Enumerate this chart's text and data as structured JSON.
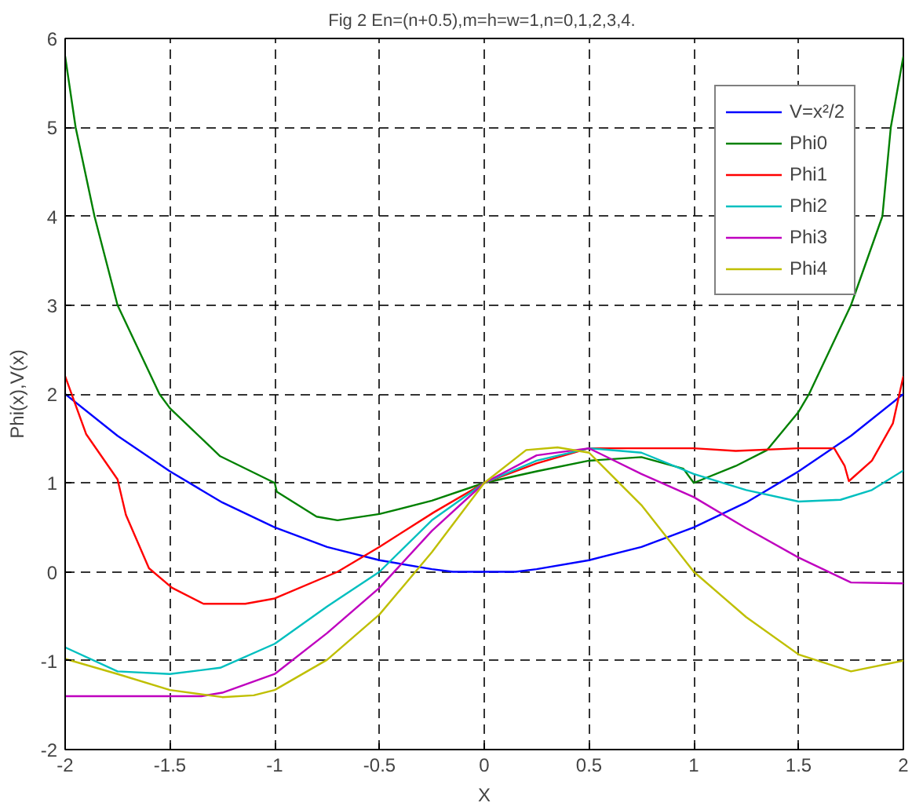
{
  "chart_data": {
    "type": "line",
    "title": "Fig 2  En=(n+0.5),m=h=w=1,n=0,1,2,3,4.",
    "xlabel": "X",
    "ylabel": "Phi(x),V(x)",
    "xlim": [
      -2,
      2
    ],
    "ylim": [
      -2,
      6
    ],
    "xticks": [
      -2,
      -1.5,
      -1,
      -0.5,
      0,
      0.5,
      1,
      1.5,
      2
    ],
    "yticks": [
      -2,
      -1,
      0,
      1,
      2,
      3,
      4,
      5,
      6
    ],
    "grid": true,
    "legend": "top right",
    "line_style": "solid",
    "series": [
      {
        "name": "V=x²/2",
        "color": "#0000ff",
        "x": [
          -2,
          -1.75,
          -1.5,
          -1.25,
          -1,
          -0.75,
          -0.5,
          -0.25,
          -0.15,
          0,
          0.15,
          0.25,
          0.5,
          0.75,
          1,
          1.25,
          1.5,
          1.75,
          2
        ],
        "values": [
          2,
          1.53,
          1.13,
          0.78,
          0.5,
          0.28,
          0.13,
          0.03,
          0,
          0,
          0,
          0.03,
          0.13,
          0.28,
          0.5,
          0.78,
          1.13,
          1.53,
          2
        ]
      },
      {
        "name": "Phi0",
        "color": "#008000",
        "x": [
          -2,
          -1.95,
          -1.86,
          -1.75,
          -1.55,
          -1.5,
          -1.26,
          -1.0,
          -0.99,
          -0.8,
          -0.7,
          -0.5,
          -0.25,
          0,
          0.25,
          0.5,
          0.75,
          0.95,
          1.0,
          1.2,
          1.35,
          1.5,
          1.55,
          1.75,
          1.9,
          1.94,
          2
        ],
        "values": [
          5.8,
          5,
          4,
          3,
          2,
          1.84,
          1.3,
          1.0,
          0.9,
          0.62,
          0.58,
          0.65,
          0.8,
          1.0,
          1.13,
          1.25,
          1.29,
          1.16,
          1.0,
          1.19,
          1.37,
          1.8,
          2.0,
          3,
          4,
          5,
          5.8
        ]
      },
      {
        "name": "Phi1",
        "color": "#ff0000",
        "x": [
          -2,
          -1.9,
          -1.75,
          -1.71,
          -1.6,
          -1.49,
          -1.34,
          -1.14,
          -1,
          -0.7,
          -0.5,
          -0.24,
          0,
          0.25,
          0.5,
          1.0,
          1.2,
          1.5,
          1.67,
          1.72,
          1.74,
          1.85,
          1.95,
          2
        ],
        "values": [
          2.2,
          1.55,
          1.04,
          0.64,
          0.04,
          -0.18,
          -0.36,
          -0.36,
          -0.3,
          0,
          0.28,
          0.67,
          1.0,
          1.22,
          1.39,
          1.39,
          1.36,
          1.39,
          1.39,
          1.19,
          1.02,
          1.25,
          1.67,
          2.2
        ]
      },
      {
        "name": "Phi2",
        "color": "#00bfbf",
        "x": [
          -2,
          -1.75,
          -1.5,
          -1.26,
          -1,
          -0.75,
          -0.5,
          -0.25,
          0,
          0.25,
          0.5,
          0.75,
          1.0,
          1.25,
          1.5,
          1.7,
          1.85,
          2
        ],
        "values": [
          -0.85,
          -1.12,
          -1.15,
          -1.08,
          -0.81,
          -0.39,
          0,
          0.58,
          1.0,
          1.25,
          1.39,
          1.34,
          1.1,
          0.92,
          0.79,
          0.81,
          0.92,
          1.14
        ]
      },
      {
        "name": "Phi3",
        "color": "#bf00bf",
        "x": [
          -2,
          -1.35,
          -1.25,
          -1,
          -0.75,
          -0.5,
          -0.25,
          0,
          0.25,
          0.5,
          0.75,
          1.0,
          1.25,
          1.5,
          1.75,
          2
        ],
        "values": [
          -1.4,
          -1.4,
          -1.36,
          -1.15,
          -0.69,
          -0.18,
          0.46,
          1.0,
          1.31,
          1.39,
          1.1,
          0.84,
          0.49,
          0.16,
          -0.12,
          -0.13
        ]
      },
      {
        "name": "Phi4",
        "color": "#bfbf00",
        "x": [
          -2,
          -1.75,
          -1.5,
          -1.25,
          -1.1,
          -1,
          -0.75,
          -0.5,
          -0.25,
          0,
          0.2,
          0.35,
          0.5,
          0.75,
          1.0,
          1.25,
          1.5,
          1.75,
          2
        ],
        "values": [
          -0.98,
          -1.15,
          -1.33,
          -1.41,
          -1.39,
          -1.33,
          -0.99,
          -0.48,
          0.22,
          1.0,
          1.37,
          1.4,
          1.34,
          0.75,
          0.0,
          -0.51,
          -0.93,
          -1.12,
          -1.0
        ]
      }
    ]
  }
}
